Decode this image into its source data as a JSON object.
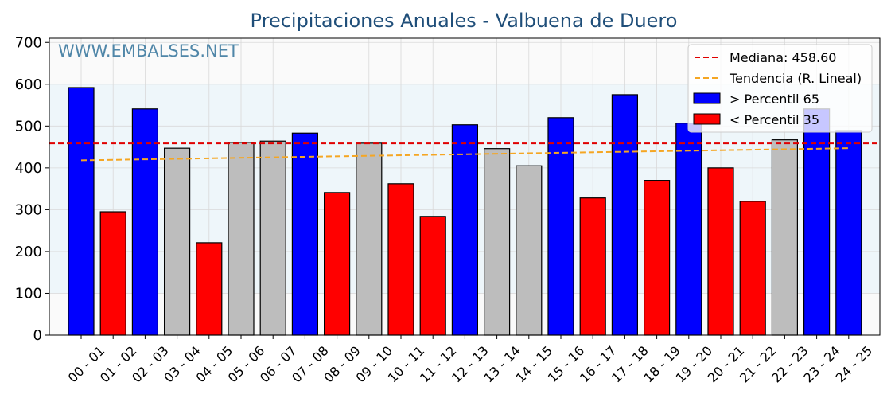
{
  "chart_data": {
    "type": "bar",
    "title": "Precipitaciones Anuales - Valbuena de Duero",
    "xlabel": "",
    "ylabel": "",
    "watermark": "WWW.EMBALSES.NET",
    "ylim": [
      0,
      710
    ],
    "yticks": [
      0,
      100,
      200,
      300,
      400,
      500,
      600,
      700
    ],
    "grid": true,
    "legend_position": "top-right",
    "categories": [
      "00 - 01",
      "01 - 02",
      "02 - 03",
      "03 - 04",
      "04 - 05",
      "05 - 06",
      "06 - 07",
      "07 - 08",
      "08 - 09",
      "09 - 10",
      "10 - 11",
      "11 - 12",
      "12 - 13",
      "13 - 14",
      "14 - 15",
      "15 - 16",
      "16 - 17",
      "17 - 18",
      "18 - 19",
      "19 - 20",
      "20 - 21",
      "21 - 22",
      "22 - 23",
      "23 - 24",
      "24 - 25"
    ],
    "values": [
      592,
      295,
      541,
      447,
      221,
      461,
      464,
      483,
      341,
      459,
      362,
      284,
      503,
      446,
      405,
      520,
      328,
      575,
      370,
      507,
      400,
      320,
      467,
      541,
      489
    ],
    "bar_classes": [
      "high",
      "low",
      "high",
      "mid",
      "low",
      "mid",
      "mid",
      "high",
      "low",
      "mid",
      "low",
      "low",
      "high",
      "mid",
      "mid",
      "high",
      "low",
      "high",
      "low",
      "high",
      "low",
      "low",
      "mid",
      "high",
      "high"
    ],
    "median": 458.6,
    "trend": [
      418,
      447
    ],
    "bands": [
      [
        100,
        600
      ]
    ],
    "colors": {
      "high": "#0000ff",
      "low": "#ff0000",
      "mid": "#bdbdbd",
      "median": "#e00000",
      "trend": "#f5a623",
      "band": "#eef6fa",
      "plot_bg": "#fafafa",
      "title": "#1f4e79"
    },
    "legend": [
      {
        "label": "Mediana: 458.60",
        "kind": "line",
        "color": "#e00000"
      },
      {
        "label": "Tendencia (R. Lineal)",
        "kind": "line",
        "color": "#f5a623"
      },
      {
        "label": " > Percentil 65",
        "kind": "box",
        "color": "#0000ff"
      },
      {
        "label": " < Percentil 35",
        "kind": "box",
        "color": "#ff0000"
      }
    ]
  }
}
